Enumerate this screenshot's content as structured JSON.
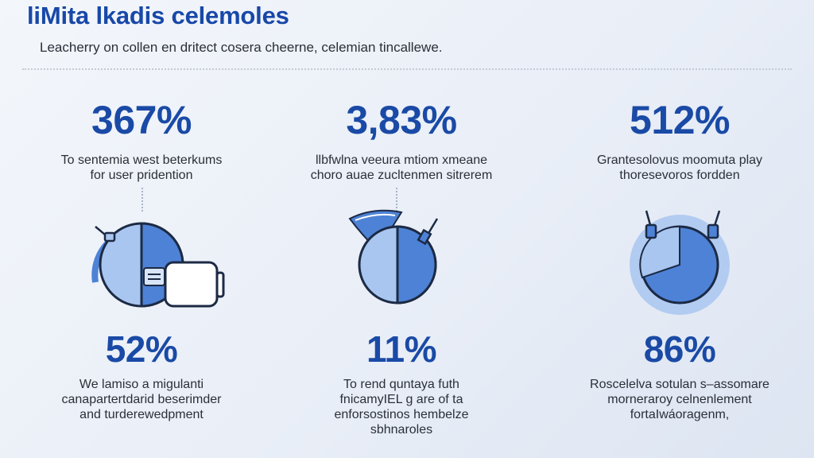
{
  "header": {
    "title": "liMita lkadis celemoles",
    "subtitle": "Leacherry on collen en dritect cosera cheerne, celemian tincallewe."
  },
  "columns": [
    {
      "top_stat": "367%",
      "top_desc": [
        "To sentemia west beterkums",
        "for user pridention"
      ],
      "bottom_stat": "52%",
      "bottom_desc": [
        "We lamiso a migulanti",
        "canapartertdarid beserimder",
        "and turderewedpment"
      ],
      "pie_share": 0.5
    },
    {
      "top_stat": "3,83%",
      "top_desc": [
        "llbfwlna veeura mtiom xmeane",
        "choro auae zucltenmen sitrerem"
      ],
      "bottom_stat": "11%",
      "bottom_desc": [
        "To rend quntaya futh",
        "fnicamyIEL g are of ta",
        "enforsostinos hembelze",
        "sbhnaroles"
      ],
      "pie_share": 0.5
    },
    {
      "top_stat": "512%",
      "top_desc": [
        "Grantesolovus moomuta play",
        "thoresevoros fordden"
      ],
      "bottom_stat": "86%",
      "bottom_desc": [
        "Roscelelva sotulan s–assomare",
        "morneraroy celnenlement",
        "fortaIwáoragenm,"
      ],
      "pie_share": 0.35
    }
  ],
  "colors": {
    "accent": "#1a4aa6",
    "pie_light": "#a9c6f0",
    "pie_dark": "#4d82d6",
    "outline": "#1c2a44"
  }
}
